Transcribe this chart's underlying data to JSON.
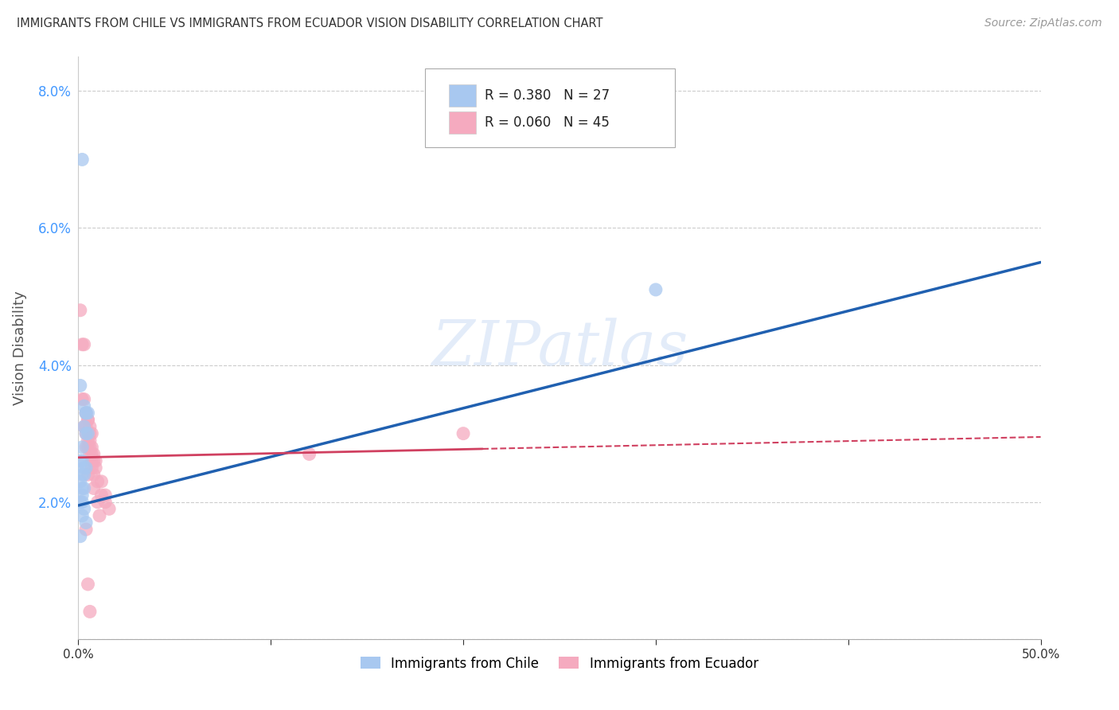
{
  "title": "IMMIGRANTS FROM CHILE VS IMMIGRANTS FROM ECUADOR VISION DISABILITY CORRELATION CHART",
  "source": "Source: ZipAtlas.com",
  "ylabel": "Vision Disability",
  "xlim": [
    0.0,
    0.5
  ],
  "ylim": [
    0.0,
    0.085
  ],
  "yticks": [
    0.0,
    0.02,
    0.04,
    0.06,
    0.08
  ],
  "ytick_labels": [
    "",
    "2.0%",
    "4.0%",
    "6.0%",
    "8.0%"
  ],
  "xticks": [
    0.0,
    0.1,
    0.2,
    0.3,
    0.4,
    0.5
  ],
  "xtick_labels": [
    "0.0%",
    "",
    "",
    "",
    "",
    "50.0%"
  ],
  "chile_color": "#a8c8f0",
  "ecuador_color": "#f5aabf",
  "chile_line_color": "#2060b0",
  "ecuador_line_color": "#d04060",
  "R_chile": 0.38,
  "N_chile": 27,
  "R_ecuador": 0.06,
  "N_ecuador": 45,
  "chile_points": [
    [
      0.002,
      0.07
    ],
    [
      0.001,
      0.037
    ],
    [
      0.003,
      0.034
    ],
    [
      0.004,
      0.033
    ],
    [
      0.004,
      0.033
    ],
    [
      0.005,
      0.033
    ],
    [
      0.003,
      0.031
    ],
    [
      0.005,
      0.03
    ],
    [
      0.004,
      0.03
    ],
    [
      0.002,
      0.028
    ],
    [
      0.001,
      0.026
    ],
    [
      0.002,
      0.026
    ],
    [
      0.003,
      0.025
    ],
    [
      0.004,
      0.025
    ],
    [
      0.002,
      0.024
    ],
    [
      0.003,
      0.024
    ],
    [
      0.001,
      0.023
    ],
    [
      0.002,
      0.022
    ],
    [
      0.003,
      0.022
    ],
    [
      0.002,
      0.021
    ],
    [
      0.001,
      0.02
    ],
    [
      0.002,
      0.02
    ],
    [
      0.003,
      0.019
    ],
    [
      0.002,
      0.018
    ],
    [
      0.004,
      0.017
    ],
    [
      0.3,
      0.051
    ],
    [
      0.001,
      0.015
    ]
  ],
  "ecuador_points": [
    [
      0.001,
      0.048
    ],
    [
      0.002,
      0.043
    ],
    [
      0.003,
      0.043
    ],
    [
      0.002,
      0.035
    ],
    [
      0.003,
      0.035
    ],
    [
      0.004,
      0.033
    ],
    [
      0.005,
      0.032
    ],
    [
      0.005,
      0.032
    ],
    [
      0.003,
      0.031
    ],
    [
      0.004,
      0.031
    ],
    [
      0.006,
      0.031
    ],
    [
      0.004,
      0.03
    ],
    [
      0.005,
      0.03
    ],
    [
      0.006,
      0.03
    ],
    [
      0.007,
      0.03
    ],
    [
      0.005,
      0.029
    ],
    [
      0.006,
      0.029
    ],
    [
      0.004,
      0.028
    ],
    [
      0.005,
      0.028
    ],
    [
      0.006,
      0.028
    ],
    [
      0.007,
      0.028
    ],
    [
      0.006,
      0.027
    ],
    [
      0.007,
      0.027
    ],
    [
      0.008,
      0.027
    ],
    [
      0.007,
      0.026
    ],
    [
      0.008,
      0.026
    ],
    [
      0.009,
      0.026
    ],
    [
      0.007,
      0.025
    ],
    [
      0.009,
      0.025
    ],
    [
      0.005,
      0.024
    ],
    [
      0.008,
      0.024
    ],
    [
      0.01,
      0.023
    ],
    [
      0.012,
      0.023
    ],
    [
      0.008,
      0.022
    ],
    [
      0.012,
      0.021
    ],
    [
      0.014,
      0.021
    ],
    [
      0.01,
      0.02
    ],
    [
      0.014,
      0.02
    ],
    [
      0.016,
      0.019
    ],
    [
      0.011,
      0.018
    ],
    [
      0.2,
      0.03
    ],
    [
      0.12,
      0.027
    ],
    [
      0.004,
      0.016
    ],
    [
      0.005,
      0.008
    ],
    [
      0.006,
      0.004
    ]
  ],
  "background_color": "#ffffff",
  "grid_color": "#cccccc"
}
